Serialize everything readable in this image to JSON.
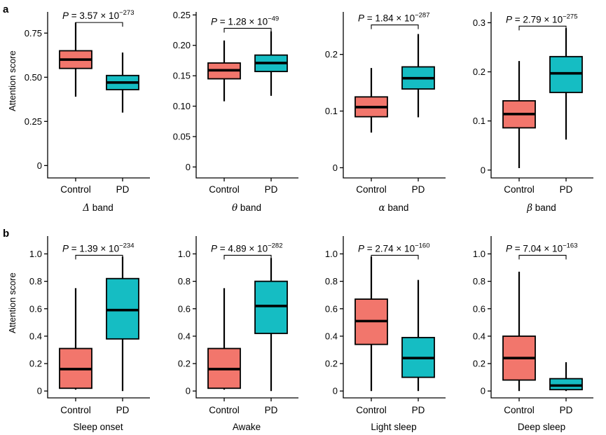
{
  "colors": {
    "control": "#f2766c",
    "pd": "#15bdc3"
  },
  "rows": [
    {
      "letter": "a",
      "ylabel": "Attention score"
    },
    {
      "letter": "b",
      "ylabel": "Attention score"
    }
  ],
  "chart_data": [
    {
      "type": "boxplot",
      "panel": "a",
      "band": {
        "symbol": "Δ",
        "text": " band"
      },
      "ylabel": "Attention score",
      "ylim": [
        -0.07,
        0.87
      ],
      "yticks": [
        0,
        0.25,
        0.5,
        0.75
      ],
      "ytick_labels": [
        "0",
        "0.25",
        "0.50",
        "0.75"
      ],
      "categories": [
        "Control",
        "PD"
      ],
      "boxes": [
        {
          "group": "Control",
          "whisker_low": 0.39,
          "q1": 0.55,
          "median": 0.6,
          "q3": 0.65,
          "whisker_high": 0.81
        },
        {
          "group": "PD",
          "whisker_low": 0.3,
          "q1": 0.43,
          "median": 0.47,
          "q3": 0.51,
          "whisker_high": 0.64
        }
      ],
      "pvalue": {
        "base": "3.57 × 10",
        "exp": "−273"
      },
      "bracket_y": 0.81
    },
    {
      "type": "boxplot",
      "panel": "a",
      "band": {
        "symbol": "θ",
        "text": " band"
      },
      "ylabel": "",
      "ylim": [
        -0.018,
        0.255
      ],
      "yticks": [
        0,
        0.05,
        0.1,
        0.15,
        0.2,
        0.25
      ],
      "ytick_labels": [
        "0",
        "0.05",
        "0.10",
        "0.15",
        "0.20",
        "0.25"
      ],
      "categories": [
        "Control",
        "PD"
      ],
      "boxes": [
        {
          "group": "Control",
          "whisker_low": 0.108,
          "q1": 0.145,
          "median": 0.159,
          "q3": 0.171,
          "whisker_high": 0.208
        },
        {
          "group": "PD",
          "whisker_low": 0.117,
          "q1": 0.157,
          "median": 0.171,
          "q3": 0.184,
          "whisker_high": 0.223
        }
      ],
      "pvalue": {
        "base": "1.28 × 10",
        "exp": "−49"
      },
      "bracket_y": 0.228
    },
    {
      "type": "boxplot",
      "panel": "a",
      "band": {
        "symbol": "α",
        "text": " band"
      },
      "ylabel": "",
      "ylim": [
        -0.018,
        0.275
      ],
      "yticks": [
        0,
        0.1,
        0.2
      ],
      "ytick_labels": [
        "0",
        "0.1",
        "0.2"
      ],
      "categories": [
        "Control",
        "PD"
      ],
      "boxes": [
        {
          "group": "Control",
          "whisker_low": 0.062,
          "q1": 0.09,
          "median": 0.107,
          "q3": 0.125,
          "whisker_high": 0.176
        },
        {
          "group": "PD",
          "whisker_low": 0.089,
          "q1": 0.139,
          "median": 0.158,
          "q3": 0.178,
          "whisker_high": 0.236
        }
      ],
      "pvalue": {
        "base": "1.84 × 10",
        "exp": "−287"
      },
      "bracket_y": 0.252
    },
    {
      "type": "boxplot",
      "panel": "a",
      "band": {
        "symbol": "β",
        "text": " band"
      },
      "ylabel": "",
      "ylim": [
        -0.016,
        0.322
      ],
      "yticks": [
        0,
        0.1,
        0.2,
        0.3
      ],
      "ytick_labels": [
        "0",
        "0.1",
        "0.2",
        "0.3"
      ],
      "categories": [
        "Control",
        "PD"
      ],
      "boxes": [
        {
          "group": "Control",
          "whisker_low": 0.004,
          "q1": 0.086,
          "median": 0.114,
          "q3": 0.141,
          "whisker_high": 0.222
        },
        {
          "group": "PD",
          "whisker_low": 0.062,
          "q1": 0.158,
          "median": 0.197,
          "q3": 0.231,
          "whisker_high": 0.289
        }
      ],
      "pvalue": {
        "base": "2.79 × 10",
        "exp": "−275"
      },
      "bracket_y": 0.293
    },
    {
      "type": "boxplot",
      "panel": "b",
      "band": {
        "symbol": "",
        "text": "Sleep onset"
      },
      "ylabel": "Attention score",
      "ylim": [
        -0.05,
        1.13
      ],
      "yticks": [
        0,
        0.2,
        0.4,
        0.6,
        0.8,
        1.0
      ],
      "ytick_labels": [
        "0",
        "0.2",
        "0.4",
        "0.6",
        "0.8",
        "1.0"
      ],
      "categories": [
        "Control",
        "PD"
      ],
      "boxes": [
        {
          "group": "Control",
          "whisker_low": 0.01,
          "q1": 0.02,
          "median": 0.16,
          "q3": 0.31,
          "whisker_high": 0.75
        },
        {
          "group": "PD",
          "whisker_low": 0.0,
          "q1": 0.38,
          "median": 0.59,
          "q3": 0.82,
          "whisker_high": 0.98
        }
      ],
      "pvalue": {
        "base": "1.39 × 10",
        "exp": "−234"
      },
      "bracket_y": 0.99
    },
    {
      "type": "boxplot",
      "panel": "b",
      "band": {
        "symbol": "",
        "text": "Awake"
      },
      "ylabel": "",
      "ylim": [
        -0.05,
        1.13
      ],
      "yticks": [
        0,
        0.2,
        0.4,
        0.6,
        0.8,
        1.0
      ],
      "ytick_labels": [
        "0",
        "0.2",
        "0.4",
        "0.6",
        "0.8",
        "1.0"
      ],
      "categories": [
        "Control",
        "PD"
      ],
      "boxes": [
        {
          "group": "Control",
          "whisker_low": 0.01,
          "q1": 0.02,
          "median": 0.16,
          "q3": 0.31,
          "whisker_high": 0.75
        },
        {
          "group": "PD",
          "whisker_low": 0.0,
          "q1": 0.42,
          "median": 0.62,
          "q3": 0.8,
          "whisker_high": 0.97
        }
      ],
      "pvalue": {
        "base": "4.89 × 10",
        "exp": "−282"
      },
      "bracket_y": 0.99
    },
    {
      "type": "boxplot",
      "panel": "b",
      "band": {
        "symbol": "",
        "text": "Light sleep"
      },
      "ylabel": "",
      "ylim": [
        -0.05,
        1.13
      ],
      "yticks": [
        0,
        0.2,
        0.4,
        0.6,
        0.8,
        1.0
      ],
      "ytick_labels": [
        "0",
        "0.2",
        "0.4",
        "0.6",
        "0.8",
        "1.0"
      ],
      "categories": [
        "Control",
        "PD"
      ],
      "boxes": [
        {
          "group": "Control",
          "whisker_low": 0.0,
          "q1": 0.34,
          "median": 0.51,
          "q3": 0.67,
          "whisker_high": 0.98
        },
        {
          "group": "PD",
          "whisker_low": 0.0,
          "q1": 0.1,
          "median": 0.24,
          "q3": 0.39,
          "whisker_high": 0.81
        }
      ],
      "pvalue": {
        "base": "2.74 × 10",
        "exp": "−160"
      },
      "bracket_y": 0.99
    },
    {
      "type": "boxplot",
      "panel": "b",
      "band": {
        "symbol": "",
        "text": "Deep sleep"
      },
      "ylabel": "",
      "ylim": [
        -0.05,
        1.13
      ],
      "yticks": [
        0,
        0.2,
        0.4,
        0.6,
        0.8,
        1.0
      ],
      "ytick_labels": [
        "0",
        "0.2",
        "0.4",
        "0.6",
        "0.8",
        "1.0"
      ],
      "categories": [
        "Control",
        "PD"
      ],
      "boxes": [
        {
          "group": "Control",
          "whisker_low": 0.0,
          "q1": 0.08,
          "median": 0.24,
          "q3": 0.4,
          "whisker_high": 0.87
        },
        {
          "group": "PD",
          "whisker_low": 0.0,
          "q1": 0.01,
          "median": 0.04,
          "q3": 0.09,
          "whisker_high": 0.21
        }
      ],
      "pvalue": {
        "base": "7.04 × 10",
        "exp": "−163"
      },
      "bracket_y": 0.99
    }
  ]
}
